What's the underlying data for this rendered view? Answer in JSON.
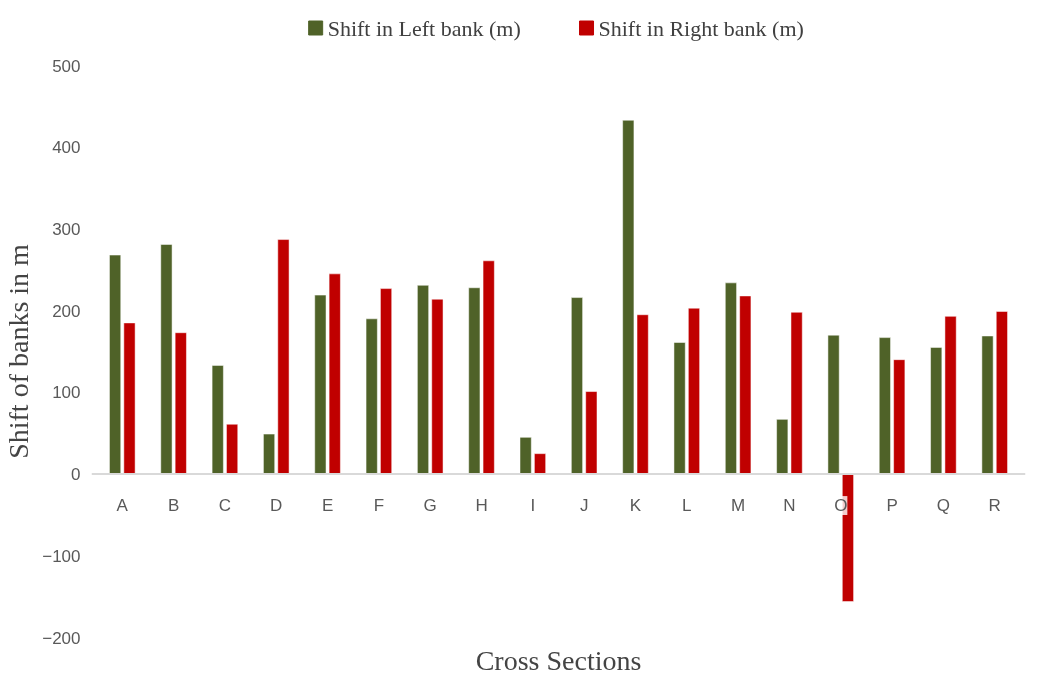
{
  "chart_data": {
    "type": "bar",
    "xlabel": "Cross Sections",
    "ylabel": "Shift of banks in m",
    "categories": [
      "A",
      "B",
      "C",
      "D",
      "E",
      "F",
      "G",
      "H",
      "I",
      "J",
      "K",
      "L",
      "M",
      "N",
      "O",
      "P",
      "Q",
      "R"
    ],
    "series": [
      {
        "name": "Shift in Left bank (m)",
        "color": "#4f6228",
        "values": [
          268,
          281,
          133,
          49,
          219,
          190,
          231,
          228,
          45,
          216,
          433,
          161,
          234,
          67,
          170,
          167,
          155,
          169
        ]
      },
      {
        "name": "Shift in Right bank (m)",
        "color": "#c00000",
        "values": [
          185,
          173,
          61,
          287,
          245,
          227,
          214,
          261,
          25,
          101,
          195,
          203,
          218,
          198,
          -156,
          140,
          193,
          199
        ]
      }
    ],
    "ylim": [
      -200,
      500
    ],
    "yticks": [
      -200,
      -100,
      0,
      100,
      200,
      300,
      400,
      500
    ],
    "grid": false,
    "legend": "top"
  }
}
